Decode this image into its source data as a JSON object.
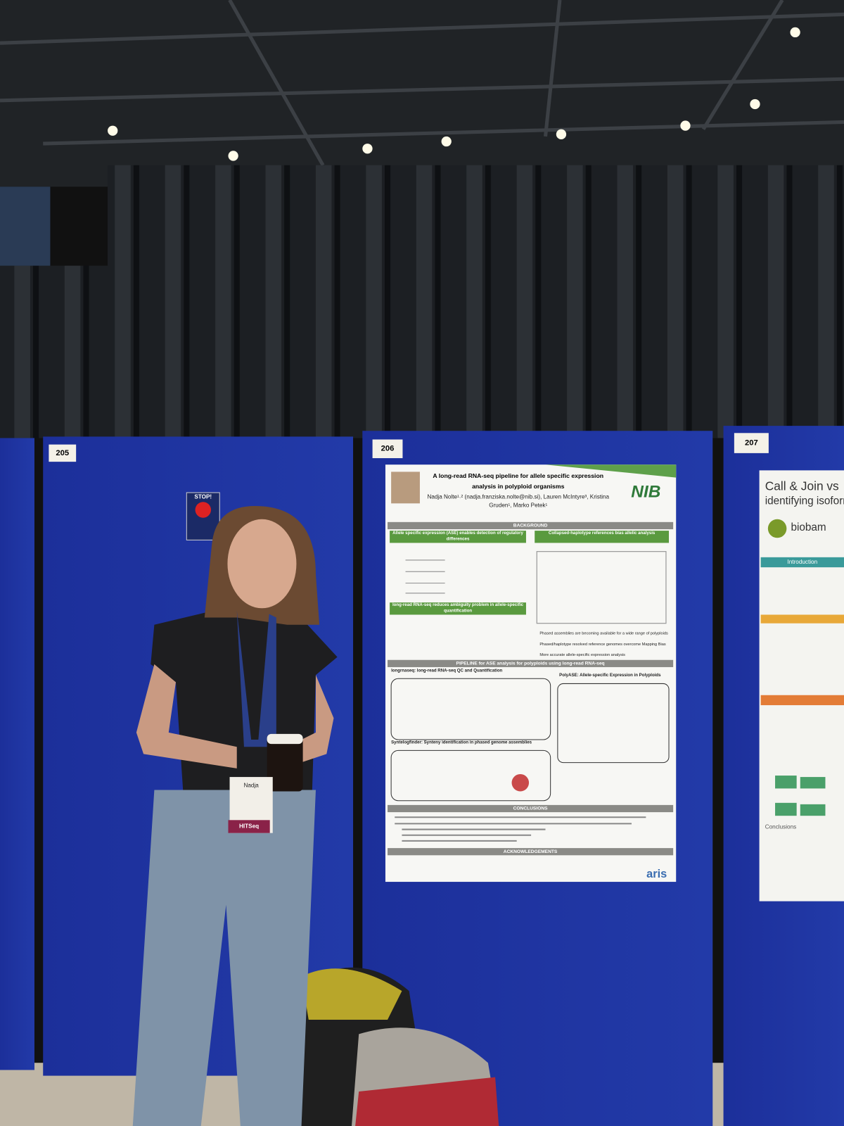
{
  "scene": {
    "board_numbers": [
      "205",
      "206",
      "207"
    ],
    "stop_sign": "STOP!",
    "badge": {
      "name": "Nadja",
      "event": "HITSeq"
    }
  },
  "poster": {
    "title_lines": [
      "A long-read RNA-seq pipeline for allele specific expression",
      "analysis in polyploid organisms"
    ],
    "author_lines": [
      "Nadja Nolte¹˒² (nadja.franziska.nolte@nib.si), Lauren McIntyre³, Kristina",
      "Gruden¹, Marko Petek¹"
    ],
    "logo": "NIB",
    "background": "BACKGROUND",
    "ase_header": "Allele specific expression (ASE) enables detection of regulatory differences",
    "collapsed_header": "Collapsed-haplotype references bias allelic analysis",
    "longread_header": "long-read RNA-seq reduces ambiguity problem in allele-specific quantification",
    "pipeline": "PIPELINE for ASE analysis for polyploids using long-read RNA-seq",
    "longrnaseq": "longrnaseq: long-read RNA-seq QC and Quantification",
    "polyase": "PolyASE: Allele-specific Expression in Polyploids",
    "syntelogfinder": "Syntelogfinder: Synteny identification in phased genome assemblies",
    "bullets": [
      "Phased assemblies are becoming available for a wide range of polyploids",
      "Phased/haplotype resolved reference genomes overcome Mapping Bias",
      "More accurate allele-specific expression analysis"
    ],
    "conclusions": "CONCLUSIONS",
    "acknowledgements": "ACKNOWLEDGEMENTS",
    "funder": "aris"
  },
  "side_poster": {
    "title_lines": [
      "Call & Join vs",
      "identifying isoform"
    ],
    "logo": "biobam",
    "sections": [
      "Introduction",
      "Conclusions"
    ]
  }
}
